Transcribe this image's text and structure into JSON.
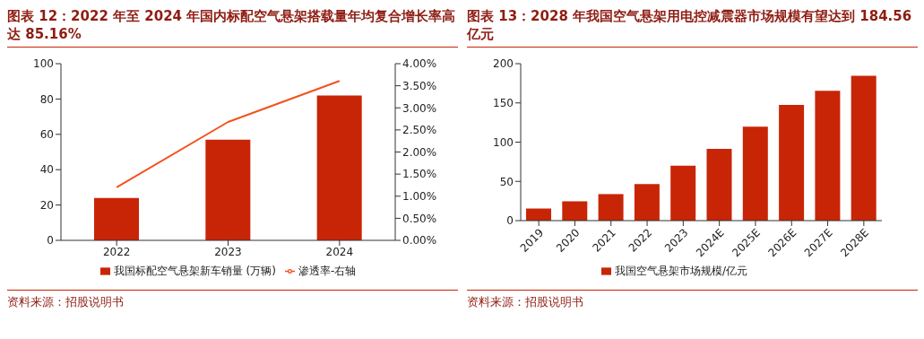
{
  "chart_data": [
    {
      "type": "bar",
      "title": "图表 12：2022 年至 2024 年国内标配空气悬架搭载量年均复合增长率高达 85.16%",
      "categories": [
        "2022",
        "2023",
        "2024"
      ],
      "series": [
        {
          "name": "我国标配空气悬架新车销量 (万辆)",
          "color": "#c82506",
          "values": [
            24,
            57,
            82
          ]
        },
        {
          "name": "渗透率-右轴",
          "type": "line",
          "axis": "y2",
          "color": "#f4511e",
          "values": [
            1.2,
            2.68,
            3.61
          ]
        }
      ],
      "ylim": [
        0,
        100
      ],
      "yticks": [
        0,
        20,
        40,
        60,
        80,
        100
      ],
      "y2lim": [
        0,
        4
      ],
      "y2ticks": [
        {
          "value": 0,
          "label": "0.00%"
        },
        {
          "value": 0.5,
          "label": "0.50%"
        },
        {
          "value": 1,
          "label": "1.00%"
        },
        {
          "value": 1.5,
          "label": "1.50%"
        },
        {
          "value": 2,
          "label": "2.00%"
        },
        {
          "value": 2.5,
          "label": "2.50%"
        },
        {
          "value": 3,
          "label": "3.00%"
        },
        {
          "value": 3.5,
          "label": "3.50%"
        },
        {
          "value": 4,
          "label": "4.00%"
        }
      ],
      "marker": "none",
      "legend": "bottom",
      "annotations": [
        "资料来源：招股说明书"
      ]
    },
    {
      "type": "bar",
      "title": "图表 13：2028 年我国空气悬架用电控减震器市场规模有望达到 184.56 亿元",
      "categories": [
        "2019",
        "2020",
        "2021",
        "2022",
        "2023",
        "2024E",
        "2025E",
        "2026E",
        "2027E",
        "2028E"
      ],
      "series": [
        {
          "name": "我国空气悬架市场规模/亿元",
          "color": "#c82506",
          "values": [
            15.4,
            24.6,
            33.8,
            46.6,
            69.9,
            91.4,
            119.6,
            147.3,
            165.3,
            184.56
          ]
        }
      ],
      "ylim": [
        0,
        200
      ],
      "yticks": [
        0,
        50,
        100,
        150,
        200
      ],
      "legend": "bottom",
      "annotations": [
        "资料来源：招股说明书"
      ]
    }
  ]
}
